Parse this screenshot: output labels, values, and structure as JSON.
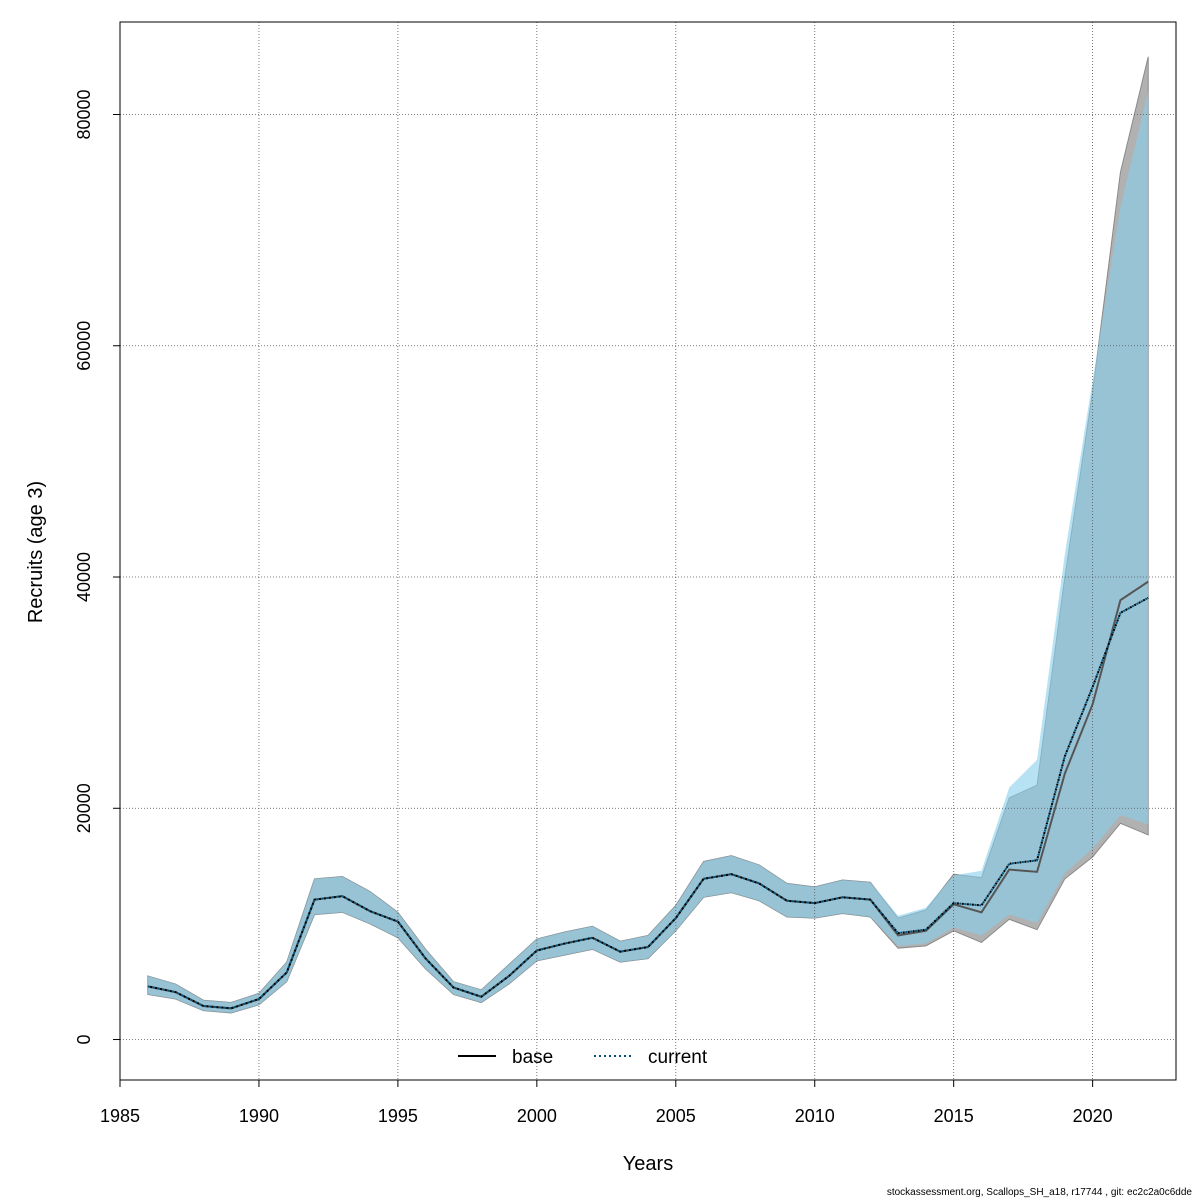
{
  "chart_data": {
    "type": "area",
    "xlabel": "Years",
    "ylabel": "Recruits (age 3)",
    "xlim": [
      1985,
      2023
    ],
    "ylim": [
      -3500,
      88000
    ],
    "x_ticks": [
      1985,
      1990,
      1995,
      2000,
      2005,
      2010,
      2015,
      2020
    ],
    "y_ticks": [
      0,
      20000,
      40000,
      60000,
      80000
    ],
    "grid": true,
    "legend_position": "bottom",
    "legend": [
      {
        "label": "base",
        "style": "solid",
        "color": "#000000"
      },
      {
        "label": "current",
        "style": "dotted",
        "color": "#00547d"
      }
    ],
    "footer": "stockassessment.org, Scallops_SH_a18, r17744 , git: ec2c2a0c6dde",
    "x": [
      1986,
      1987,
      1988,
      1989,
      1990,
      1991,
      1992,
      1993,
      1994,
      1995,
      1996,
      1997,
      1998,
      1999,
      2000,
      2001,
      2002,
      2003,
      2004,
      2005,
      2006,
      2007,
      2008,
      2009,
      2010,
      2011,
      2012,
      2013,
      2014,
      2015,
      2016,
      2017,
      2018,
      2019,
      2020,
      2021,
      2022
    ],
    "series": [
      {
        "name": "base",
        "color": "#000000",
        "band_color": "#a9a9a9",
        "values": [
          4600,
          4100,
          2900,
          2700,
          3500,
          5800,
          12100,
          12400,
          11100,
          10200,
          7000,
          4500,
          3700,
          5500,
          7700,
          8300,
          8800,
          7600,
          8000,
          10500,
          13900,
          14300,
          13500,
          12000,
          11800,
          12300,
          12100,
          9000,
          9400,
          11700,
          11000,
          14700,
          14500,
          23000,
          29000,
          38000,
          39600
        ],
        "lower": [
          3900,
          3500,
          2500,
          2300,
          3000,
          5000,
          10800,
          11000,
          10000,
          8800,
          6100,
          3900,
          3200,
          4800,
          6800,
          7300,
          7800,
          6700,
          7000,
          9400,
          12300,
          12700,
          12000,
          10600,
          10500,
          10900,
          10600,
          7900,
          8100,
          9400,
          8400,
          10400,
          9500,
          13900,
          15800,
          18700,
          17700
        ],
        "upper": [
          5500,
          4800,
          3400,
          3200,
          4000,
          6700,
          13900,
          14100,
          12800,
          11000,
          7800,
          5000,
          4300,
          6500,
          8700,
          9300,
          9800,
          8500,
          9000,
          11600,
          15400,
          15900,
          15100,
          13500,
          13200,
          13800,
          13600,
          10500,
          11200,
          14300,
          14000,
          20900,
          22000,
          40000,
          56000,
          75000,
          85000
        ]
      },
      {
        "name": "current",
        "color": "#00547d",
        "band_color": "#87ceeb",
        "values": [
          4600,
          4100,
          2900,
          2700,
          3500,
          5800,
          12100,
          12400,
          11100,
          10200,
          7000,
          4500,
          3700,
          5500,
          7700,
          8300,
          8800,
          7600,
          8000,
          10500,
          13900,
          14300,
          13500,
          12000,
          11800,
          12300,
          12100,
          9200,
          9500,
          11800,
          11600,
          15200,
          15500,
          24500,
          30500,
          36900,
          38200
        ],
        "lower": [
          3900,
          3500,
          2500,
          2300,
          3000,
          5000,
          10800,
          11000,
          10000,
          8800,
          6100,
          3900,
          3200,
          4800,
          6800,
          7300,
          7800,
          6700,
          7000,
          9400,
          12300,
          12700,
          12000,
          10600,
          10500,
          10900,
          10600,
          8100,
          8300,
          9700,
          9000,
          10800,
          10100,
          14400,
          16500,
          19400,
          18600
        ],
        "upper": [
          5500,
          4800,
          3400,
          3200,
          4000,
          6700,
          13900,
          14100,
          12800,
          11000,
          7800,
          5000,
          4300,
          6500,
          8700,
          9300,
          9800,
          8500,
          9000,
          11600,
          15400,
          15900,
          15100,
          13500,
          13200,
          13800,
          13600,
          10700,
          11400,
          14200,
          14600,
          21800,
          24200,
          42000,
          57000,
          72000,
          82000
        ]
      }
    ]
  }
}
